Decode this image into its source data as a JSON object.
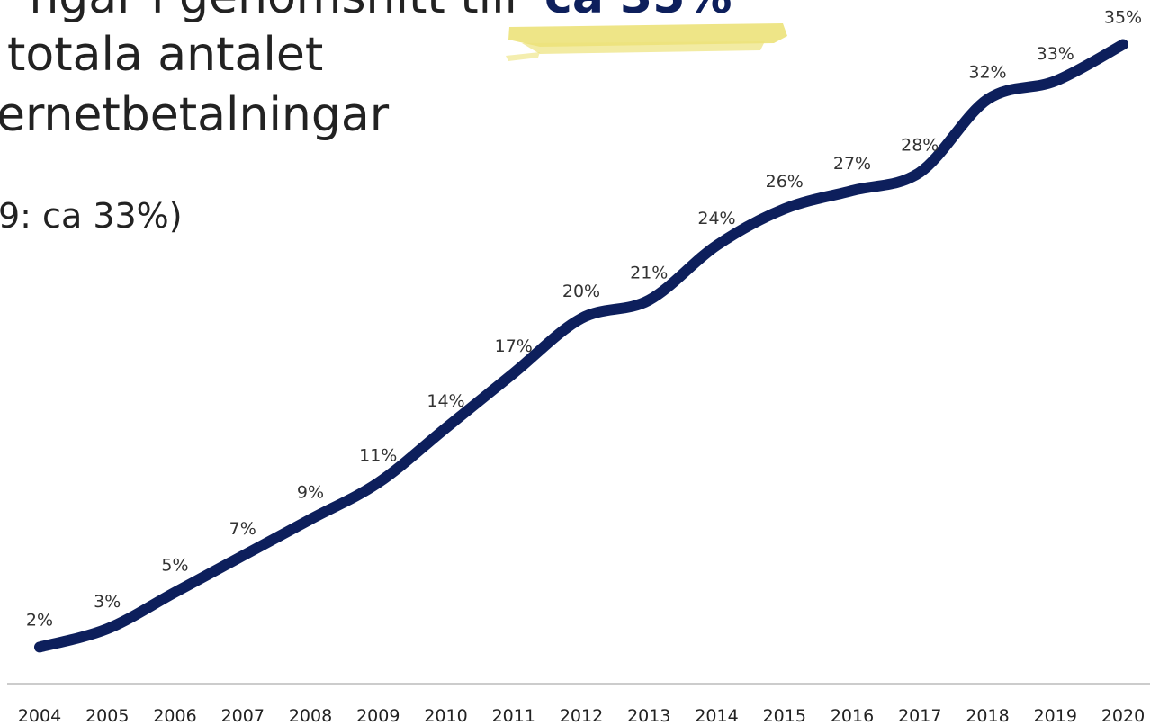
{
  "chart_data": {
    "type": "line",
    "title_lines": [
      "ngar i genomsnitt till",
      "totala antalet",
      "ernetbetalningar"
    ],
    "title_highlight": "ca 35%",
    "subtitle": "9: ca 33%)",
    "categories": [
      "2004",
      "2005",
      "2006",
      "2007",
      "2008",
      "2009",
      "2010",
      "2011",
      "2012",
      "2013",
      "2014",
      "2015",
      "2016",
      "2017",
      "2018",
      "2019",
      "2020"
    ],
    "series": [
      {
        "color": "#0d1f5c",
        "values": [
          2,
          3,
          5,
          7,
          9,
          11,
          14,
          17,
          20,
          21,
          24,
          26,
          27,
          28,
          32,
          33,
          35
        ],
        "value_labels": [
          "2%",
          "3%",
          "5%",
          "7%",
          "9%",
          "11%",
          "14%",
          "17%",
          "20%",
          "21%",
          "24%",
          "26%",
          "27%",
          "28%",
          "32%",
          "33%",
          "35%"
        ]
      }
    ]
  }
}
